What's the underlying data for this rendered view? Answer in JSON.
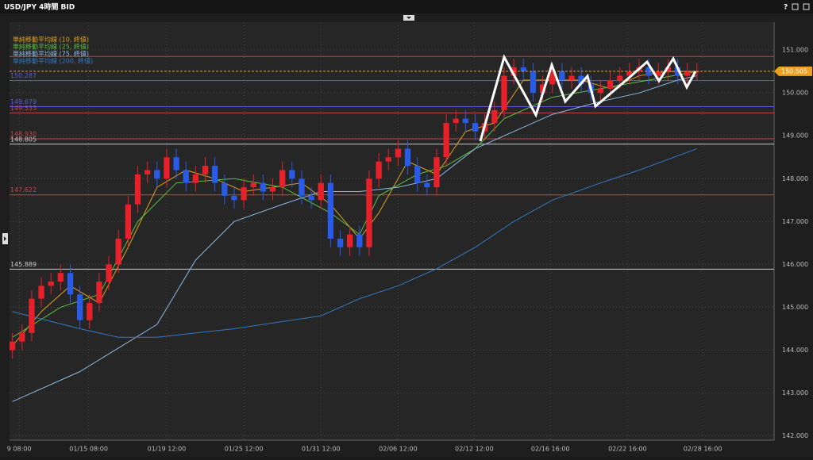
{
  "window_title": "USD/JPY 4時間 BID",
  "chart_data": {
    "type": "candlestick",
    "xlim": [
      -0.3,
      79
    ],
    "ylim": [
      141.9,
      151.65
    ],
    "xticks": [
      {
        "value": 0.7,
        "label": "9 08:00"
      },
      {
        "value": 7.9,
        "label": "01/15 08:00"
      },
      {
        "value": 16,
        "label": "01/19 12:00"
      },
      {
        "value": 24,
        "label": "01/25 12:00"
      },
      {
        "value": 32,
        "label": "01/31 12:00"
      },
      {
        "value": 40,
        "label": "02/06 12:00"
      },
      {
        "value": 47.9,
        "label": "02/12 12:00"
      },
      {
        "value": 55.8,
        "label": "02/16 16:00"
      },
      {
        "value": 63.8,
        "label": "02/22 16:00"
      },
      {
        "value": 71.6,
        "label": "02/28 16:00"
      }
    ],
    "yticks": [
      {
        "value": 142,
        "label": "142.000"
      },
      {
        "value": 143,
        "label": "143.000"
      },
      {
        "value": 144,
        "label": "144.000"
      },
      {
        "value": 145,
        "label": "145.000"
      },
      {
        "value": 146,
        "label": "146.000"
      },
      {
        "value": 147,
        "label": "147.000"
      },
      {
        "value": 148,
        "label": "148.000"
      },
      {
        "value": 149,
        "label": "149.000"
      },
      {
        "value": 150,
        "label": "150.000"
      },
      {
        "value": 151,
        "label": "151.000"
      }
    ],
    "grid": true,
    "up_color": "#e8202a",
    "down_color": "#2a5ae8",
    "open": [
      144.0,
      144.2,
      144.4,
      145.2,
      145.5,
      145.6,
      145.8,
      145.3,
      144.7,
      145.1,
      145.6,
      146.0,
      146.6,
      147.4,
      148.1,
      148.2,
      148.0,
      148.5,
      148.2,
      147.9,
      148.1,
      148.3,
      147.9,
      147.6,
      147.5,
      147.8,
      147.9,
      147.7,
      147.8,
      148.2,
      148.0,
      147.6,
      147.5,
      147.9,
      146.6,
      146.4,
      146.7,
      146.4,
      148.0,
      148.4,
      148.5,
      148.7,
      148.3,
      147.9,
      147.8,
      148.5,
      149.3,
      149.4,
      149.3,
      149.1,
      149.3,
      149.6,
      150.4,
      150.6,
      150.5,
      150.0,
      150.2,
      150.5,
      150.3,
      150.4,
      150.2,
      150.0,
      150.1,
      150.3,
      150.4,
      150.5,
      150.6,
      150.4,
      150.5,
      150.6,
      150.4,
      150.5
    ],
    "high": [
      144.4,
      144.6,
      145.4,
      145.7,
      145.8,
      146.0,
      146.0,
      145.5,
      145.3,
      145.8,
      146.2,
      146.8,
      147.6,
      148.3,
      148.4,
      148.4,
      148.7,
      148.7,
      148.4,
      148.3,
      148.5,
      148.5,
      148.1,
      147.8,
      148.0,
      148.1,
      148.1,
      148.0,
      148.4,
      148.4,
      148.2,
      147.8,
      148.1,
      148.1,
      146.8,
      146.9,
      146.9,
      148.2,
      148.6,
      148.7,
      148.9,
      148.9,
      148.5,
      148.1,
      148.7,
      149.5,
      149.6,
      149.6,
      149.5,
      149.5,
      149.8,
      150.6,
      150.8,
      150.8,
      150.7,
      150.4,
      150.7,
      150.7,
      150.6,
      150.6,
      150.4,
      150.3,
      150.5,
      150.6,
      150.7,
      150.8,
      150.8,
      150.7,
      150.8,
      150.8,
      150.7,
      150.7
    ],
    "low": [
      143.8,
      144.0,
      144.2,
      145.0,
      145.3,
      145.4,
      145.1,
      144.5,
      144.5,
      144.9,
      145.4,
      145.8,
      146.4,
      147.2,
      147.9,
      147.8,
      147.8,
      148.0,
      147.7,
      147.7,
      147.9,
      147.7,
      147.4,
      147.3,
      147.3,
      147.6,
      147.5,
      147.5,
      147.6,
      147.8,
      147.4,
      147.3,
      147.3,
      146.4,
      146.2,
      146.2,
      146.2,
      146.2,
      147.8,
      148.2,
      148.3,
      148.1,
      147.7,
      147.6,
      147.6,
      148.3,
      149.1,
      149.1,
      148.9,
      148.9,
      149.1,
      149.4,
      150.2,
      150.3,
      149.8,
      149.8,
      150.0,
      150.1,
      150.1,
      150.0,
      149.8,
      149.8,
      149.9,
      150.1,
      150.2,
      150.3,
      150.2,
      150.2,
      150.3,
      150.2,
      150.2,
      150.3
    ],
    "close": [
      144.2,
      144.4,
      145.2,
      145.5,
      145.6,
      145.8,
      145.3,
      144.7,
      145.1,
      145.6,
      146.0,
      146.6,
      147.4,
      148.1,
      148.2,
      148.0,
      148.5,
      148.2,
      147.9,
      148.1,
      148.3,
      147.9,
      147.6,
      147.5,
      147.8,
      147.9,
      147.7,
      147.8,
      148.2,
      148.0,
      147.6,
      147.5,
      147.9,
      146.6,
      146.4,
      146.7,
      146.4,
      148.0,
      148.4,
      148.5,
      148.7,
      148.3,
      147.9,
      147.8,
      148.5,
      149.3,
      149.4,
      149.3,
      149.1,
      149.3,
      149.6,
      150.4,
      150.6,
      150.5,
      150.0,
      150.2,
      150.5,
      150.3,
      150.4,
      150.2,
      150.0,
      150.1,
      150.3,
      150.4,
      150.5,
      150.6,
      150.4,
      150.5,
      150.6,
      150.4,
      150.5,
      150.5
    ],
    "series": [
      {
        "name": "単純移動平均線 (10, 終値)",
        "color": "#e0a020",
        "x": [
          0,
          3,
          6,
          9,
          12,
          15,
          18,
          21,
          24,
          27,
          30,
          33,
          36,
          38,
          41,
          44,
          47,
          50,
          53,
          56,
          59,
          62,
          65,
          68,
          71
        ],
        "values": [
          144.1,
          144.9,
          145.5,
          145.1,
          146.4,
          147.8,
          148.2,
          148.0,
          147.7,
          147.8,
          147.9,
          147.4,
          146.6,
          147.2,
          148.4,
          148.1,
          149.1,
          149.3,
          150.3,
          150.3,
          150.3,
          150.1,
          150.4,
          150.5,
          150.5
        ]
      },
      {
        "name": "単純移動平均線 (25, 終値)",
        "color": "#5cc040",
        "x": [
          0,
          5,
          9,
          13,
          17,
          23,
          28,
          33,
          36,
          38,
          42,
          45,
          48,
          51,
          56,
          61,
          66,
          71
        ],
        "values": [
          144.3,
          145.0,
          145.3,
          147.0,
          147.9,
          148.0,
          147.8,
          147.2,
          146.7,
          147.6,
          148.1,
          148.3,
          148.7,
          149.4,
          149.9,
          150.1,
          150.3,
          150.5
        ]
      },
      {
        "name": "単純移動平均線 (75, 終値)",
        "color": "#8cb8e0",
        "x": [
          0,
          7,
          15,
          19,
          23,
          28,
          32,
          36,
          40,
          44,
          48,
          52,
          56,
          61,
          65,
          69,
          71
        ],
        "values": [
          142.8,
          143.5,
          144.6,
          146.1,
          147.0,
          147.4,
          147.7,
          147.7,
          147.8,
          148.0,
          148.7,
          149.1,
          149.5,
          149.8,
          150.0,
          150.3,
          150.4
        ]
      },
      {
        "name": "単純移動平均線 (200, 終値)",
        "color": "#3478c0",
        "x": [
          0,
          7,
          11,
          15,
          23,
          32,
          36,
          40,
          44,
          48,
          52,
          56,
          61,
          65,
          71
        ],
        "values": [
          144.9,
          144.5,
          144.3,
          144.3,
          144.5,
          144.8,
          145.2,
          145.5,
          145.9,
          146.4,
          147.0,
          147.5,
          147.9,
          148.2,
          148.7
        ]
      }
    ],
    "levels": [
      {
        "value": 150.85,
        "color": "#c04848"
      },
      {
        "value": 150.287,
        "label": "150.287",
        "color": "#5a5ad8"
      },
      {
        "value": 149.679,
        "label": "149.679",
        "color": "#5a5ad8"
      },
      {
        "value": 149.533,
        "label": "149.533",
        "color": "#c04848"
      },
      {
        "value": 148.93,
        "label": "148.930",
        "color": "#c04848"
      },
      {
        "value": 148.805,
        "label": "148.805",
        "color": "#c8c8c8"
      },
      {
        "value": 147.622,
        "label": "147.622",
        "color": "#c04848"
      },
      {
        "value": 145.889,
        "label": "145.889",
        "color": "#c8c8c8"
      }
    ],
    "last_price": {
      "value": 150.505,
      "label": "150.505",
      "color": "#f0a020"
    }
  }
}
